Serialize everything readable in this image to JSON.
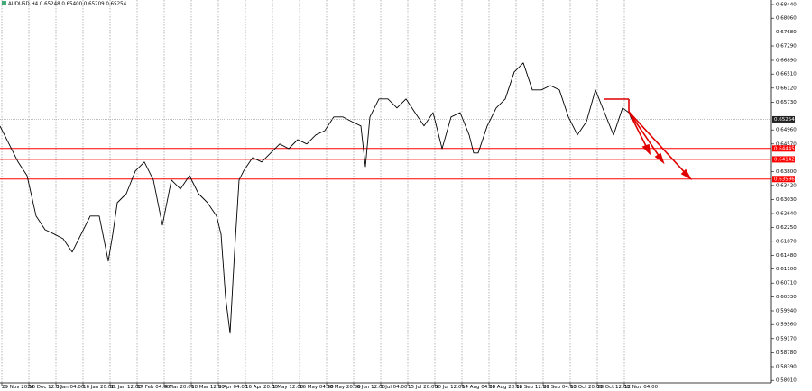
{
  "chart_data": {
    "type": "line",
    "title": "AUDUSD,H4 0.65248 0.65400 0.65209 0.65254",
    "x": [
      0,
      30,
      60,
      90,
      120,
      150,
      180,
      210,
      240,
      270,
      300,
      330,
      360,
      375,
      390,
      420,
      450,
      480,
      510,
      540,
      570,
      600,
      630,
      660,
      690,
      720,
      735,
      750,
      765,
      780,
      795,
      810,
      840,
      870,
      900,
      930,
      960,
      990,
      1020,
      1050,
      1080,
      1110,
      1140,
      1170,
      1200,
      1215,
      1230,
      1260,
      1290,
      1320,
      1350,
      1380,
      1410,
      1440,
      1470,
      1500,
      1530,
      1560,
      1575,
      1590,
      1620,
      1650,
      1680,
      1710,
      1740,
      1770,
      1800,
      1830,
      1860,
      1890,
      1920,
      1950,
      1980,
      2010,
      2040,
      2070,
      2091,
      2100
    ],
    "values": [
      0.65065,
      0.6457,
      0.6407,
      0.6369,
      0.6257,
      0.6219,
      0.6207,
      0.6194,
      0.6157,
      0.6207,
      0.6257,
      0.6257,
      0.6132,
      0.6207,
      0.6294,
      0.6319,
      0.6382,
      0.6407,
      0.6357,
      0.6232,
      0.6357,
      0.6332,
      0.6369,
      0.6319,
      0.6294,
      0.6257,
      0.6207,
      0.6032,
      0.5932,
      0.6157,
      0.6357,
      0.6382,
      0.6419,
      0.6407,
      0.6432,
      0.6457,
      0.6444,
      0.6469,
      0.6457,
      0.6482,
      0.6494,
      0.6532,
      0.6532,
      0.6519,
      0.6507,
      0.6394,
      0.6532,
      0.6582,
      0.6582,
      0.6557,
      0.6582,
      0.6544,
      0.6507,
      0.6544,
      0.6444,
      0.6532,
      0.6544,
      0.6482,
      0.6432,
      0.6432,
      0.6507,
      0.6557,
      0.6582,
      0.6657,
      0.6682,
      0.6607,
      0.6607,
      0.6619,
      0.6607,
      0.6532,
      0.6482,
      0.6519,
      0.6607,
      0.6544,
      0.6482,
      0.6557,
      0.6544,
      0.65254
    ],
    "color": "#000000",
    "xlim": [
      0,
      2565
    ],
    "ylim": [
      0.5794,
      0.68565
    ],
    "xticks": [
      {
        "value": 6,
        "label": "29 Nov 2024"
      },
      {
        "value": 96,
        "label": "16 Dec 12:00"
      },
      {
        "value": 186,
        "label": "3 Jan 04:00"
      },
      {
        "value": 276,
        "label": "16 Jan 20:00"
      },
      {
        "value": 366,
        "label": "31 Jan 12:00"
      },
      {
        "value": 456,
        "label": "17 Feb 04:00"
      },
      {
        "value": 546,
        "label": "4 Mar 20:00"
      },
      {
        "value": 636,
        "label": "18 Mar 12:00"
      },
      {
        "value": 726,
        "label": "2 Apr 04:00"
      },
      {
        "value": 816,
        "label": "16 Apr 20:00"
      },
      {
        "value": 906,
        "label": "1 May 12:00"
      },
      {
        "value": 996,
        "label": "16 May 04:00"
      },
      {
        "value": 1086,
        "label": "30 May 20:00"
      },
      {
        "value": 1176,
        "label": "16 Jun 12:00"
      },
      {
        "value": 1266,
        "label": "1 Jul 04:00"
      },
      {
        "value": 1356,
        "label": "15 Jul 20:00"
      },
      {
        "value": 1446,
        "label": "30 Jul 12:00"
      },
      {
        "value": 1536,
        "label": "14 Aug 04:00"
      },
      {
        "value": 1626,
        "label": "28 Aug 20:00"
      },
      {
        "value": 1716,
        "label": "12 Sep 12:00"
      },
      {
        "value": 1806,
        "label": "29 Sep 04:00"
      },
      {
        "value": 1896,
        "label": "13 Oct 20:00"
      },
      {
        "value": 1986,
        "label": "28 Oct 12:00"
      },
      {
        "value": 2076,
        "label": "12 Nov 04:00"
      }
    ],
    "yticks": [
      {
        "value": 0.6844,
        "label": "0.68440"
      },
      {
        "value": 0.6806,
        "label": "0.68060"
      },
      {
        "value": 0.6768,
        "label": "0.67680"
      },
      {
        "value": 0.6729,
        "label": "0.67290"
      },
      {
        "value": 0.6689,
        "label": "0.66890"
      },
      {
        "value": 0.6651,
        "label": "0.66510"
      },
      {
        "value": 0.6612,
        "label": "0.66120"
      },
      {
        "value": 0.6573,
        "label": "0.65730"
      },
      {
        "value": 0.6496,
        "label": "0.64960"
      },
      {
        "value": 0.6457,
        "label": "0.64570"
      },
      {
        "value": 0.638,
        "label": "0.63800"
      },
      {
        "value": 0.6342,
        "label": "0.63420"
      },
      {
        "value": 0.6303,
        "label": "0.63030"
      },
      {
        "value": 0.6264,
        "label": "0.62640"
      },
      {
        "value": 0.6225,
        "label": "0.62250"
      },
      {
        "value": 0.6187,
        "label": "0.61870"
      },
      {
        "value": 0.6148,
        "label": "0.61480"
      },
      {
        "value": 0.611,
        "label": "0.61100"
      },
      {
        "value": 0.6071,
        "label": "0.60710"
      },
      {
        "value": 0.6033,
        "label": "0.60330"
      },
      {
        "value": 0.5994,
        "label": "0.59940"
      },
      {
        "value": 0.5956,
        "label": "0.59560"
      },
      {
        "value": 0.5917,
        "label": "0.59170"
      },
      {
        "value": 0.5878,
        "label": "0.58780"
      },
      {
        "value": 0.5839,
        "label": "0.58390"
      },
      {
        "value": 0.5801,
        "label": "0.58010"
      }
    ],
    "grid": true,
    "levels": [
      {
        "value": 0.64445,
        "label": "0.64445"
      },
      {
        "value": 0.64142,
        "label": "0.64142"
      },
      {
        "value": 0.63596,
        "label": "0.63596"
      }
    ],
    "level_color": "#ff0000",
    "last": {
      "value": 0.65254,
      "label": "0.65254"
    }
  }
}
